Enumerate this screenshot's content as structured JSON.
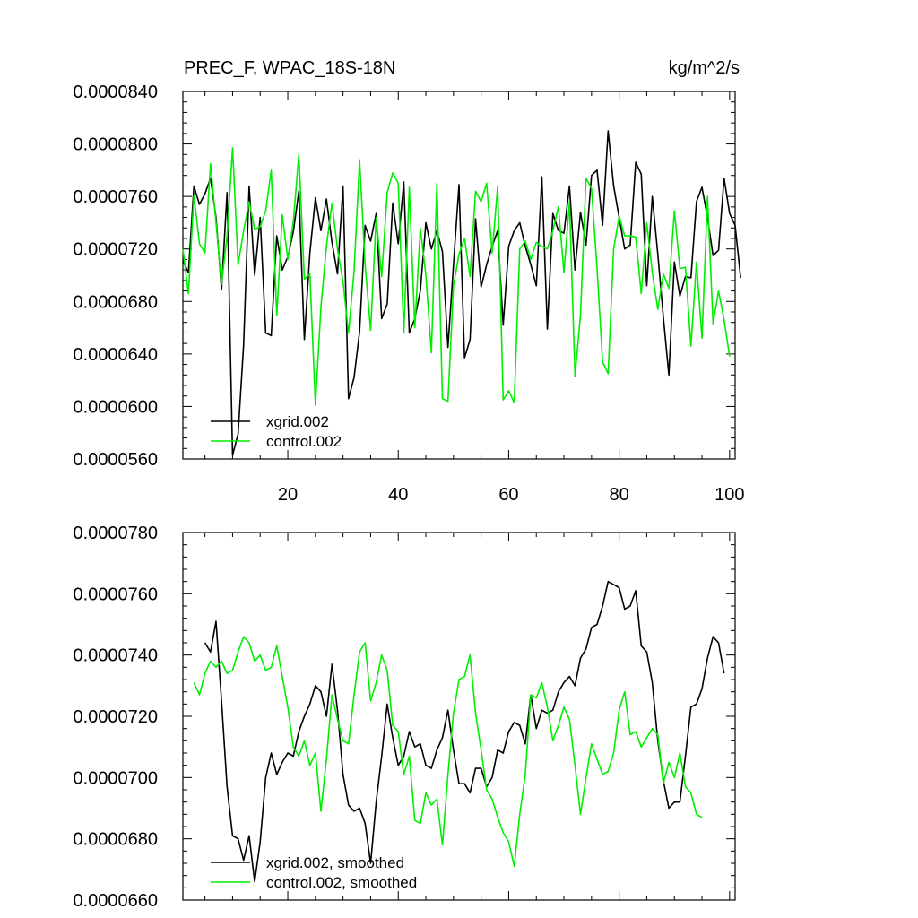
{
  "chart_data": [
    {
      "type": "line",
      "title": "PREC_F, WPAC_18S-18N",
      "units_label": "kg/m^2/s",
      "xlim": [
        1,
        101
      ],
      "ylim": [
        5.6e-05,
        8.4e-05
      ],
      "x_ticks": [
        20,
        40,
        60,
        80,
        100
      ],
      "x_tick_labels": [
        "20",
        "40",
        "60",
        "80",
        "100"
      ],
      "y_ticks": [
        5.6e-05,
        6e-05,
        6.4e-05,
        6.8e-05,
        7.2e-05,
        7.6e-05,
        8e-05,
        8.4e-05
      ],
      "y_tick_labels": [
        "0.0000560",
        "0.0000600",
        "0.0000640",
        "0.0000680",
        "0.0000720",
        "0.0000760",
        "0.0000800",
        "0.0000840"
      ],
      "legend_position": "bottom-left",
      "series": [
        {
          "name": "xgrid.002",
          "color": "#000000",
          "x_start": 1,
          "values": [
            7.11e-05,
            7.02e-05,
            7.68e-05,
            7.54e-05,
            7.62e-05,
            7.74e-05,
            7.44e-05,
            6.89e-05,
            7.63e-05,
            5.63e-05,
            5.79e-05,
            6.47e-05,
            7.68e-05,
            7e-05,
            7.44e-05,
            6.56e-05,
            6.54e-05,
            7.3e-05,
            7.04e-05,
            7.14e-05,
            7.33e-05,
            7.64e-05,
            6.51e-05,
            7.17e-05,
            7.59e-05,
            7.34e-05,
            7.58e-05,
            7.25e-05,
            7.01e-05,
            7.68e-05,
            6.06e-05,
            6.22e-05,
            6.57e-05,
            7.38e-05,
            7.26e-05,
            7.47e-05,
            6.67e-05,
            6.78e-05,
            7.55e-05,
            7.24e-05,
            7.71e-05,
            6.56e-05,
            6.67e-05,
            6.88e-05,
            7.4e-05,
            7.2e-05,
            7.34e-05,
            7.18e-05,
            6.45e-05,
            7.08e-05,
            7.69e-05,
            6.37e-05,
            6.51e-05,
            7.43e-05,
            6.91e-05,
            7.08e-05,
            7.22e-05,
            7.34e-05,
            6.62e-05,
            7.22e-05,
            7.34e-05,
            7.4e-05,
            7.22e-05,
            7.08e-05,
            6.92e-05,
            7.75e-05,
            6.59e-05,
            7.47e-05,
            7.34e-05,
            7.32e-05,
            7.68e-05,
            7.04e-05,
            7.48e-05,
            7.23e-05,
            7.76e-05,
            7.8e-05,
            7.38e-05,
            8.1e-05,
            7.68e-05,
            7.44e-05,
            7.2e-05,
            7.23e-05,
            7.86e-05,
            7.77e-05,
            6.92e-05,
            7.6e-05,
            7.16e-05,
            6.68e-05,
            6.24e-05,
            7.1e-05,
            6.84e-05,
            6.99e-05,
            6.98e-05,
            7.56e-05,
            7.67e-05,
            7.44e-05,
            7.15e-05,
            7.19e-05,
            7.74e-05,
            7.47e-05,
            7.38e-05,
            6.98e-05
          ]
        },
        {
          "name": "control.002",
          "color": "#00ee00",
          "x_start": 1,
          "values": [
            7.2e-05,
            6.86e-05,
            7.61e-05,
            7.24e-05,
            7.17e-05,
            7.85e-05,
            7.4e-05,
            6.93e-05,
            7.3e-05,
            7.97e-05,
            7.08e-05,
            7.34e-05,
            7.56e-05,
            7.35e-05,
            7.37e-05,
            7.49e-05,
            7.8e-05,
            6.69e-05,
            7.46e-05,
            7.12e-05,
            7.41e-05,
            7.92e-05,
            6.97e-05,
            7.01e-05,
            6.01e-05,
            6.76e-05,
            7.22e-05,
            7.55e-05,
            7.2e-05,
            6.95e-05,
            6.56e-05,
            7.03e-05,
            7.88e-05,
            7.08e-05,
            6.58e-05,
            7.44e-05,
            6.99e-05,
            7.63e-05,
            7.78e-05,
            7.7e-05,
            6.56e-05,
            7.67e-05,
            6.6e-05,
            7.36e-05,
            7e-05,
            6.41e-05,
            7.7e-05,
            6.06e-05,
            6.04e-05,
            6.92e-05,
            7.16e-05,
            7.28e-05,
            6.99e-05,
            7.64e-05,
            7.56e-05,
            7.7e-05,
            7.17e-05,
            7.68e-05,
            6.05e-05,
            6.12e-05,
            6.03e-05,
            7.2e-05,
            7.26e-05,
            7.12e-05,
            7.25e-05,
            7.22e-05,
            7.2e-05,
            7.34e-05,
            7.52e-05,
            7.02e-05,
            7.56e-05,
            6.23e-05,
            6.7e-05,
            7.74e-05,
            7.66e-05,
            7.05e-05,
            6.34e-05,
            6.25e-05,
            7.2e-05,
            7.45e-05,
            7.3e-05,
            7.3e-05,
            7.29e-05,
            6.86e-05,
            7.4e-05,
            7.02e-05,
            6.74e-05,
            7.01e-05,
            6.9e-05,
            7.49e-05,
            7.05e-05,
            7.06e-05,
            6.46e-05,
            7.1e-05,
            6.52e-05,
            7.6e-05,
            6.63e-05,
            6.88e-05,
            6.66e-05,
            6.38e-05
          ]
        }
      ]
    },
    {
      "type": "line",
      "title": "",
      "xlim": [
        1,
        101
      ],
      "ylim": [
        6.6e-05,
        7.8e-05
      ],
      "x_ticks": [
        20,
        40,
        60,
        80,
        100
      ],
      "x_tick_labels": [],
      "y_ticks": [
        6.6e-05,
        6.8e-05,
        7e-05,
        7.2e-05,
        7.4e-05,
        7.6e-05,
        7.8e-05
      ],
      "y_tick_labels": [
        "0.0000660",
        "0.0000680",
        "0.0000700",
        "0.0000720",
        "0.0000740",
        "0.0000760",
        "0.0000780"
      ],
      "legend_position": "bottom-left",
      "series": [
        {
          "name": "xgrid.002, smoothed",
          "color": "#000000",
          "x_start": 5,
          "values": [
            7.44e-05,
            7.41e-05,
            7.51e-05,
            7.25e-05,
            6.97e-05,
            6.81e-05,
            6.8e-05,
            6.73e-05,
            6.81e-05,
            6.66e-05,
            6.79e-05,
            7e-05,
            7.08e-05,
            7.01e-05,
            7.05e-05,
            7.08e-05,
            7.07e-05,
            7.15e-05,
            7.2e-05,
            7.24e-05,
            7.3e-05,
            7.28e-05,
            7.2e-05,
            7.37e-05,
            7.22e-05,
            7.01e-05,
            6.91e-05,
            6.89e-05,
            6.9e-05,
            6.85e-05,
            6.72e-05,
            6.92e-05,
            7.07e-05,
            7.24e-05,
            7.13e-05,
            7.04e-05,
            7.07e-05,
            7.15e-05,
            7.1e-05,
            7.11e-05,
            7.04e-05,
            7.03e-05,
            7.09e-05,
            7.13e-05,
            7.22e-05,
            7.09e-05,
            6.98e-05,
            6.98e-05,
            6.95e-05,
            7.03e-05,
            7.03e-05,
            6.97e-05,
            7e-05,
            7.09e-05,
            7.08e-05,
            7.15e-05,
            7.18e-05,
            7.17e-05,
            7.11e-05,
            7.27e-05,
            7.16e-05,
            7.22e-05,
            7.21e-05,
            7.22e-05,
            7.28e-05,
            7.31e-05,
            7.33e-05,
            7.3e-05,
            7.39e-05,
            7.42e-05,
            7.49e-05,
            7.5e-05,
            7.56e-05,
            7.64e-05,
            7.63e-05,
            7.62e-05,
            7.55e-05,
            7.56e-05,
            7.61e-05,
            7.43e-05,
            7.41e-05,
            7.31e-05,
            7.12e-05,
            6.99e-05,
            6.9e-05,
            6.92e-05,
            6.92e-05,
            7.07e-05,
            7.23e-05,
            7.24e-05,
            7.29e-05,
            7.39e-05,
            7.46e-05,
            7.44e-05,
            7.34e-05
          ]
        },
        {
          "name": "control.002, smoothed",
          "color": "#00ee00",
          "x_start": 3,
          "values": [
            7.31e-05,
            7.27e-05,
            7.34e-05,
            7.38e-05,
            7.36e-05,
            7.38e-05,
            7.34e-05,
            7.35e-05,
            7.41e-05,
            7.46e-05,
            7.44e-05,
            7.38e-05,
            7.4e-05,
            7.35e-05,
            7.36e-05,
            7.43e-05,
            7.33e-05,
            7.23e-05,
            7.1e-05,
            7.07e-05,
            7.12e-05,
            7.04e-05,
            7.08e-05,
            6.89e-05,
            7.06e-05,
            7.27e-05,
            7.19e-05,
            7.12e-05,
            7.11e-05,
            7.27e-05,
            7.41e-05,
            7.44e-05,
            7.25e-05,
            7.31e-05,
            7.4e-05,
            7.35e-05,
            7.17e-05,
            7.15e-05,
            7.01e-05,
            7.07e-05,
            6.86e-05,
            6.85e-05,
            6.95e-05,
            6.91e-05,
            6.93e-05,
            6.78e-05,
            7.01e-05,
            7.21e-05,
            7.32e-05,
            7.33e-05,
            7.4e-05,
            7.21e-05,
            7.09e-05,
            6.96e-05,
            6.93e-05,
            6.87e-05,
            6.82e-05,
            6.79e-05,
            6.71e-05,
            6.88e-05,
            7.01e-05,
            7.27e-05,
            7.26e-05,
            7.31e-05,
            7.23e-05,
            7.12e-05,
            7.17e-05,
            7.23e-05,
            7.19e-05,
            7.04e-05,
            6.88e-05,
            7e-05,
            7.11e-05,
            7.06e-05,
            7.01e-05,
            7.02e-05,
            7.08e-05,
            7.22e-05,
            7.28e-05,
            7.14e-05,
            7.15e-05,
            7.1e-05,
            7.13e-05,
            7.16e-05,
            7.14e-05,
            6.98e-05,
            7.05e-05,
            7e-05,
            7.08e-05,
            6.97e-05,
            6.95e-05,
            6.88e-05,
            6.87e-05
          ]
        }
      ]
    }
  ]
}
